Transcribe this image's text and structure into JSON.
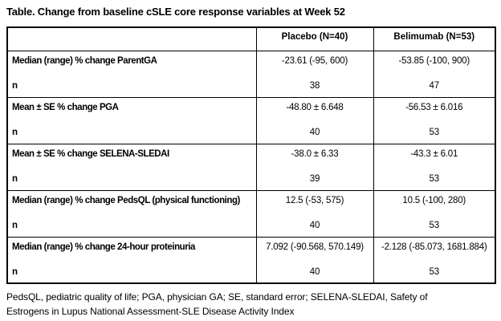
{
  "title": "Table. Change from baseline cSLE core response variables at Week 52",
  "table": {
    "header": {
      "placebo": "Placebo (N=40)",
      "belimumab": "Belimumab (N=53)"
    },
    "groups": [
      {
        "label": "Median (range) % change ParentGA",
        "placebo": "-23.61 (-95, 600)",
        "belimumab": "-53.85 (-100, 900)",
        "n_label": "n",
        "n_placebo": "38",
        "n_belimumab": "47"
      },
      {
        "label": "Mean ± SE % change PGA",
        "placebo": "-48.80 ± 6.648",
        "belimumab": "-56.53 ± 6.016",
        "n_label": "n",
        "n_placebo": "40",
        "n_belimumab": "53"
      },
      {
        "label": "Mean ± SE % change SELENA-SLEDAI",
        "placebo": "-38.0 ± 6.33",
        "belimumab": "-43.3 ± 6.01",
        "n_label": "n",
        "n_placebo": "39",
        "n_belimumab": "53"
      },
      {
        "label": "Median (range) % change PedsQL (physical functioning)",
        "placebo": "12.5 (-53, 575)",
        "belimumab": "10.5 (-100, 280)",
        "n_label": "n",
        "n_placebo": "40",
        "n_belimumab": "53"
      },
      {
        "label": "Median (range) % change 24-hour proteinuria",
        "placebo": "7.092 (-90.568, 570.149)",
        "belimumab": "-2.128 (-85.073, 1681.884)",
        "n_label": "n",
        "n_placebo": "40",
        "n_belimumab": "53"
      }
    ]
  },
  "footnote": {
    "line1": "PedsQL, pediatric quality of life; PGA, physician GA; SE, standard error; SELENA-SLEDAI, Safety of",
    "line2": "Estrogens in Lupus National Assessment-SLE Disease Activity Index"
  },
  "colors": {
    "border": "#000000",
    "text": "#000000",
    "background": "#ffffff"
  }
}
